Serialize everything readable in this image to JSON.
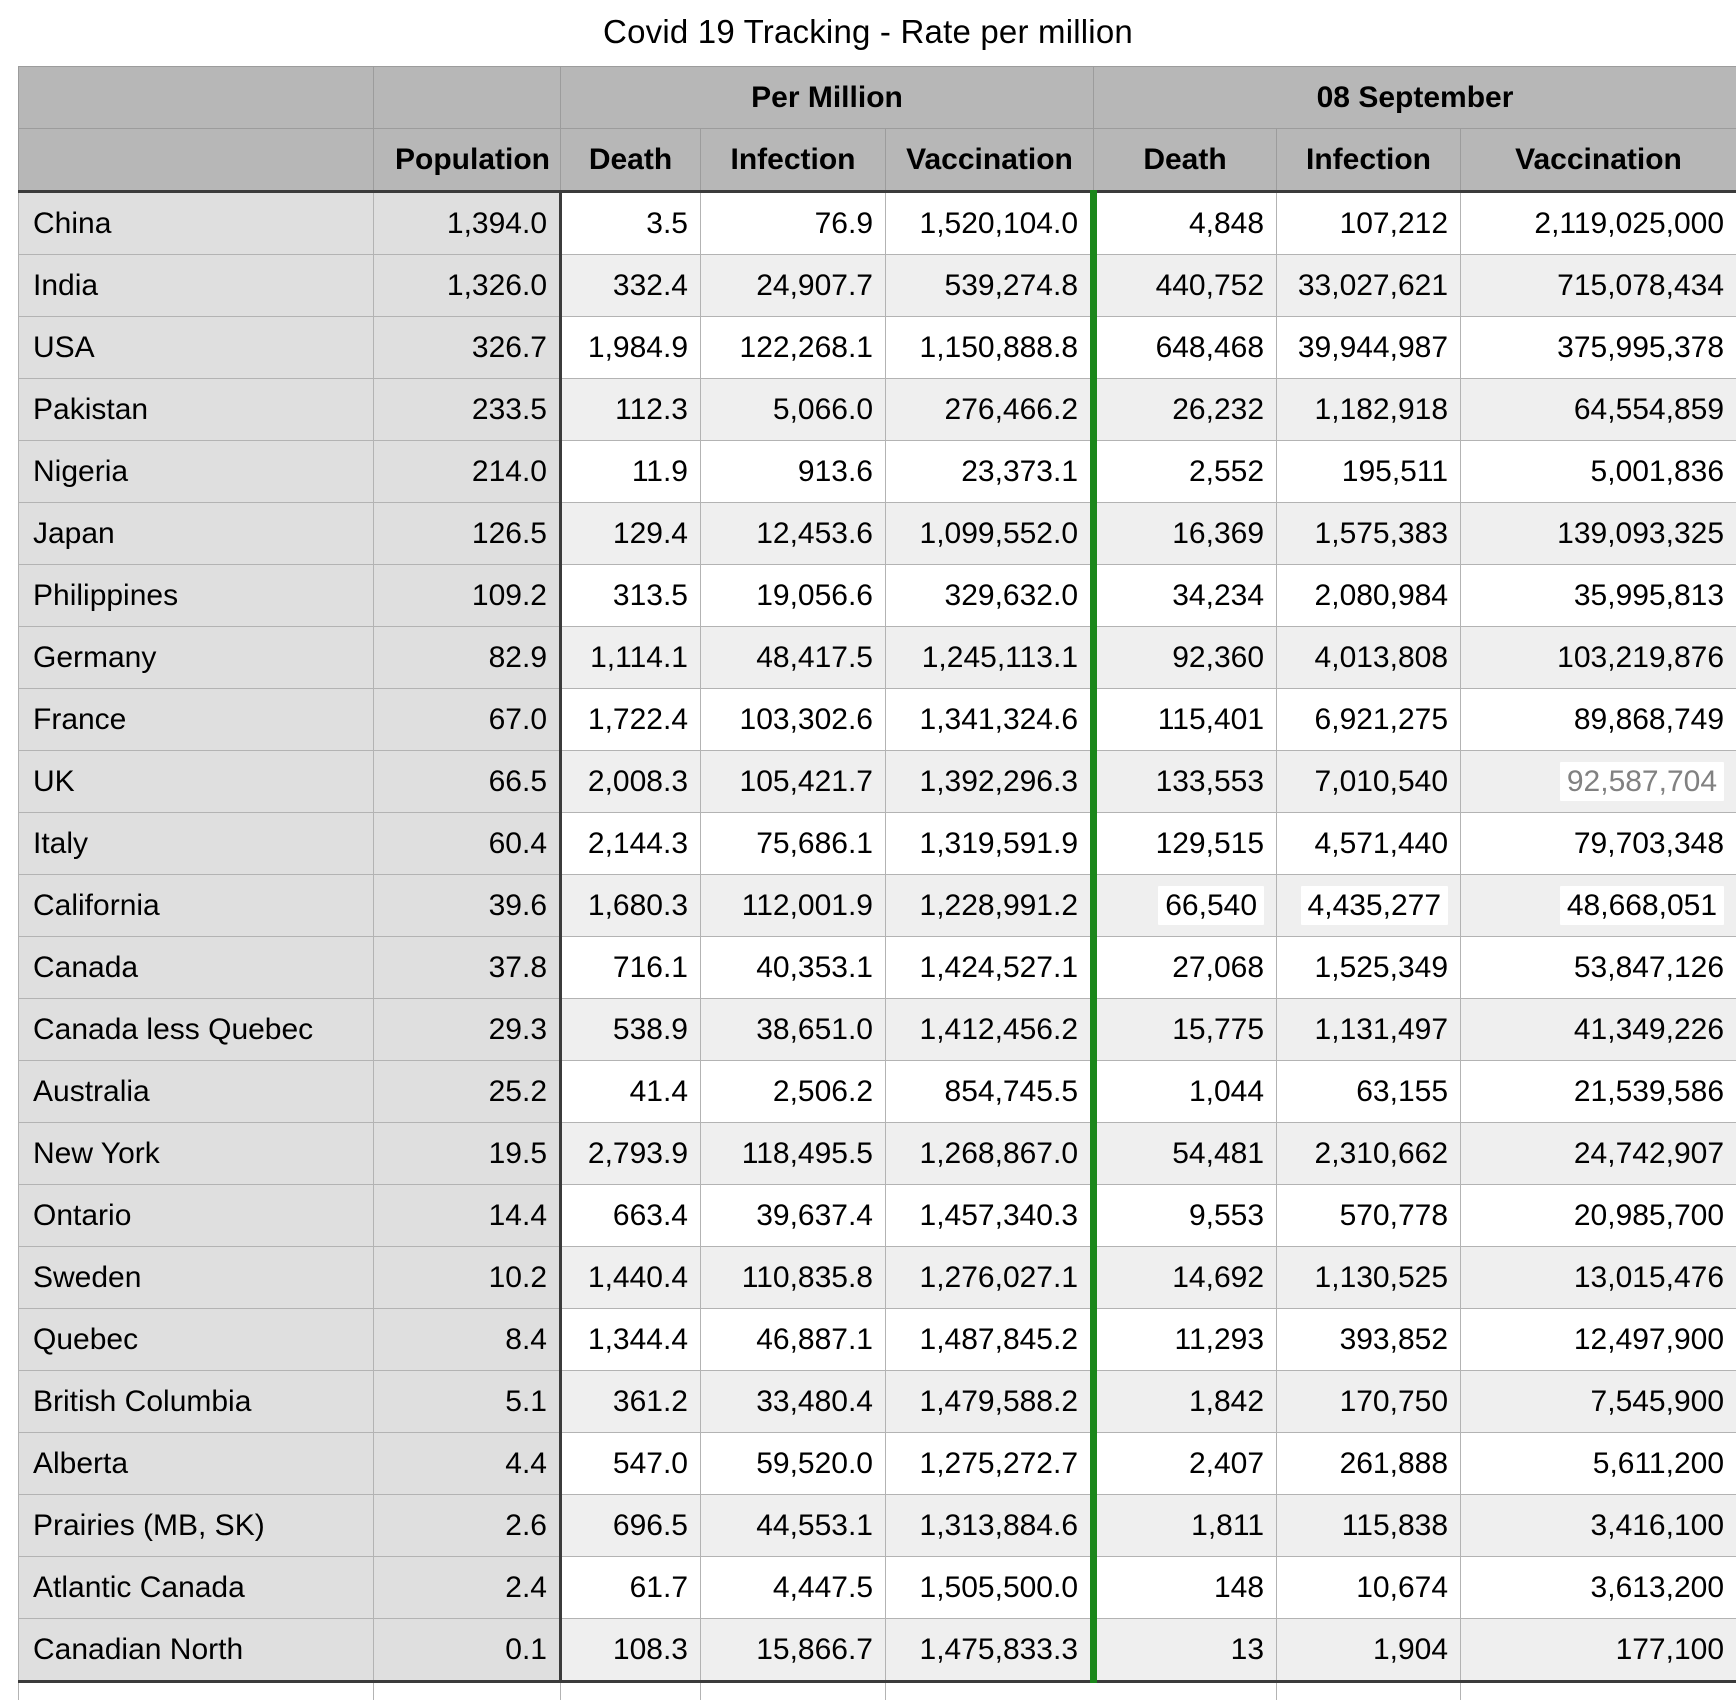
{
  "chart_data": {
    "type": "table",
    "title": "Covid 19 Tracking - Rate per million",
    "column_groups": {
      "per_million": "Per Million",
      "date": "08 September"
    },
    "columns": {
      "population": "Population",
      "death": "Death",
      "infection": "Infection",
      "vaccination": "Vaccination"
    },
    "rows": [
      {
        "name": "China",
        "population": "1,394.0",
        "pm_death": "3.5",
        "pm_infection": "76.9",
        "pm_vaccination": "1,520,104.0",
        "sep_death": "4,848",
        "sep_infection": "107,212",
        "sep_vaccination": "2,119,025,000"
      },
      {
        "name": "India",
        "population": "1,326.0",
        "pm_death": "332.4",
        "pm_infection": "24,907.7",
        "pm_vaccination": "539,274.8",
        "sep_death": "440,752",
        "sep_infection": "33,027,621",
        "sep_vaccination": "715,078,434"
      },
      {
        "name": "USA",
        "population": "326.7",
        "pm_death": "1,984.9",
        "pm_infection": "122,268.1",
        "pm_vaccination": "1,150,888.8",
        "sep_death": "648,468",
        "sep_infection": "39,944,987",
        "sep_vaccination": "375,995,378"
      },
      {
        "name": "Pakistan",
        "population": "233.5",
        "pm_death": "112.3",
        "pm_infection": "5,066.0",
        "pm_vaccination": "276,466.2",
        "sep_death": "26,232",
        "sep_infection": "1,182,918",
        "sep_vaccination": "64,554,859"
      },
      {
        "name": "Nigeria",
        "population": "214.0",
        "pm_death": "11.9",
        "pm_infection": "913.6",
        "pm_vaccination": "23,373.1",
        "sep_death": "2,552",
        "sep_infection": "195,511",
        "sep_vaccination": "5,001,836"
      },
      {
        "name": "Japan",
        "population": "126.5",
        "pm_death": "129.4",
        "pm_infection": "12,453.6",
        "pm_vaccination": "1,099,552.0",
        "sep_death": "16,369",
        "sep_infection": "1,575,383",
        "sep_vaccination": "139,093,325"
      },
      {
        "name": "Philippines",
        "population": "109.2",
        "pm_death": "313.5",
        "pm_infection": "19,056.6",
        "pm_vaccination": "329,632.0",
        "sep_death": "34,234",
        "sep_infection": "2,080,984",
        "sep_vaccination": "35,995,813"
      },
      {
        "name": "Germany",
        "population": "82.9",
        "pm_death": "1,114.1",
        "pm_infection": "48,417.5",
        "pm_vaccination": "1,245,113.1",
        "sep_death": "92,360",
        "sep_infection": "4,013,808",
        "sep_vaccination": "103,219,876"
      },
      {
        "name": "France",
        "population": "67.0",
        "pm_death": "1,722.4",
        "pm_infection": "103,302.6",
        "pm_vaccination": "1,341,324.6",
        "sep_death": "115,401",
        "sep_infection": "6,921,275",
        "sep_vaccination": "89,868,749"
      },
      {
        "name": "UK",
        "population": "66.5",
        "pm_death": "2,008.3",
        "pm_infection": "105,421.7",
        "pm_vaccination": "1,392,296.3",
        "sep_death": "133,553",
        "sep_infection": "7,010,540",
        "sep_vaccination": "92,587,704",
        "hl": {
          "sep_vaccination": "edited"
        }
      },
      {
        "name": "Italy",
        "population": "60.4",
        "pm_death": "2,144.3",
        "pm_infection": "75,686.1",
        "pm_vaccination": "1,319,591.9",
        "sep_death": "129,515",
        "sep_infection": "4,571,440",
        "sep_vaccination": "79,703,348"
      },
      {
        "name": "California",
        "population": "39.6",
        "pm_death": "1,680.3",
        "pm_infection": "112,001.9",
        "pm_vaccination": "1,228,991.2",
        "sep_death": "66,540",
        "sep_infection": "4,435,277",
        "sep_vaccination": "48,668,051",
        "hl": {
          "sep_death": "flash",
          "sep_infection": "flash",
          "sep_vaccination": "flash"
        }
      },
      {
        "name": "Canada",
        "population": "37.8",
        "pm_death": "716.1",
        "pm_infection": "40,353.1",
        "pm_vaccination": "1,424,527.1",
        "sep_death": "27,068",
        "sep_infection": "1,525,349",
        "sep_vaccination": "53,847,126"
      },
      {
        "name": "Canada less Quebec",
        "population": "29.3",
        "pm_death": "538.9",
        "pm_infection": "38,651.0",
        "pm_vaccination": "1,412,456.2",
        "sep_death": "15,775",
        "sep_infection": "1,131,497",
        "sep_vaccination": "41,349,226"
      },
      {
        "name": "Australia",
        "population": "25.2",
        "pm_death": "41.4",
        "pm_infection": "2,506.2",
        "pm_vaccination": "854,745.5",
        "sep_death": "1,044",
        "sep_infection": "63,155",
        "sep_vaccination": "21,539,586"
      },
      {
        "name": "New York",
        "population": "19.5",
        "pm_death": "2,793.9",
        "pm_infection": "118,495.5",
        "pm_vaccination": "1,268,867.0",
        "sep_death": "54,481",
        "sep_infection": "2,310,662",
        "sep_vaccination": "24,742,907"
      },
      {
        "name": "Ontario",
        "population": "14.4",
        "pm_death": "663.4",
        "pm_infection": "39,637.4",
        "pm_vaccination": "1,457,340.3",
        "sep_death": "9,553",
        "sep_infection": "570,778",
        "sep_vaccination": "20,985,700"
      },
      {
        "name": "Sweden",
        "population": "10.2",
        "pm_death": "1,440.4",
        "pm_infection": "110,835.8",
        "pm_vaccination": "1,276,027.1",
        "sep_death": "14,692",
        "sep_infection": "1,130,525",
        "sep_vaccination": "13,015,476"
      },
      {
        "name": "Quebec",
        "population": "8.4",
        "pm_death": "1,344.4",
        "pm_infection": "46,887.1",
        "pm_vaccination": "1,487,845.2",
        "sep_death": "11,293",
        "sep_infection": "393,852",
        "sep_vaccination": "12,497,900"
      },
      {
        "name": "British Columbia",
        "population": "5.1",
        "pm_death": "361.2",
        "pm_infection": "33,480.4",
        "pm_vaccination": "1,479,588.2",
        "sep_death": "1,842",
        "sep_infection": "170,750",
        "sep_vaccination": "7,545,900"
      },
      {
        "name": "Alberta",
        "population": "4.4",
        "pm_death": "547.0",
        "pm_infection": "59,520.0",
        "pm_vaccination": "1,275,272.7",
        "sep_death": "2,407",
        "sep_infection": "261,888",
        "sep_vaccination": "5,611,200"
      },
      {
        "name": "Prairies (MB, SK)",
        "population": "2.6",
        "pm_death": "696.5",
        "pm_infection": "44,553.1",
        "pm_vaccination": "1,313,884.6",
        "sep_death": "1,811",
        "sep_infection": "115,838",
        "sep_vaccination": "3,416,100"
      },
      {
        "name": "Atlantic Canada",
        "population": "2.4",
        "pm_death": "61.7",
        "pm_infection": "4,447.5",
        "pm_vaccination": "1,505,500.0",
        "sep_death": "148",
        "sep_infection": "10,674",
        "sep_vaccination": "3,613,200"
      },
      {
        "name": "Canadian North",
        "population": "0.1",
        "pm_death": "108.3",
        "pm_infection": "15,866.7",
        "pm_vaccination": "1,475,833.3",
        "sep_death": "13",
        "sep_infection": "1,904",
        "sep_vaccination": "177,100"
      }
    ],
    "layout": {
      "grid": true,
      "striped_rows": true,
      "green_column_divider_between": [
        "Vaccination (Per Million)",
        "Death (08 September)"
      ]
    }
  },
  "colors": {
    "green_divider": "#1b871b",
    "header_bg": "#b7b7b7",
    "label_column_bg": "#dfdfdf",
    "stripe_bg": "#efefef",
    "heavy_border": "#3b3b3b",
    "edited_cell_text": "#818181"
  }
}
